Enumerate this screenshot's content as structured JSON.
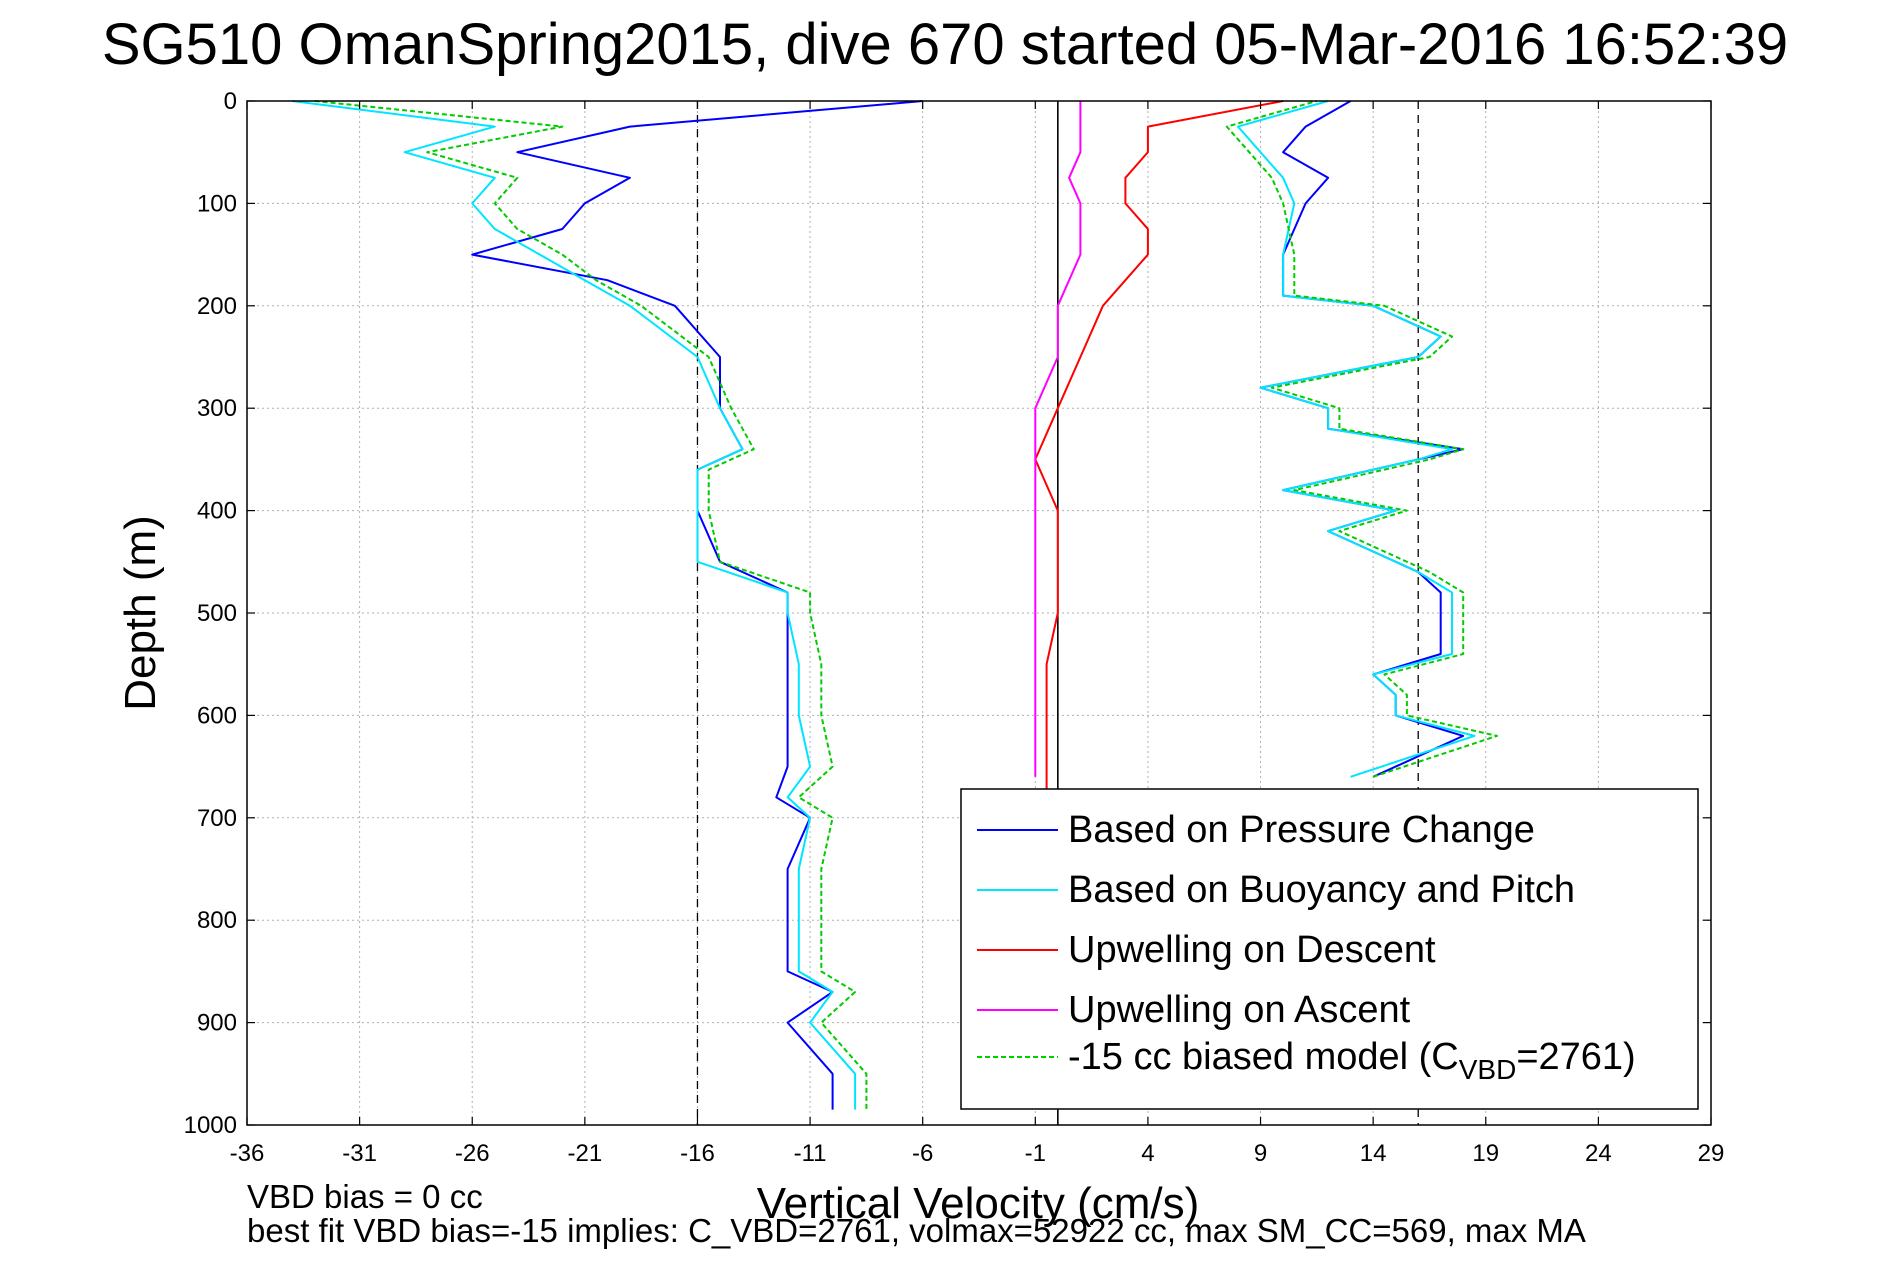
{
  "chart_data": {
    "type": "line",
    "title": "SG510 OmanSpring2015, dive 670 started 05-Mar-2016 16:52:39",
    "xlabel": "Vertical Velocity (cm/s)",
    "ylabel": "Depth (m)",
    "xlim": [
      -36,
      29
    ],
    "ylim": [
      0,
      1000
    ],
    "y_reversed": true,
    "x_ticks": [
      "-36",
      "-31",
      "-26",
      "-21",
      "-16",
      "-11",
      "-6",
      "-1",
      "4",
      "9",
      "14",
      "19",
      "24",
      "29"
    ],
    "y_ticks": [
      "0",
      "100",
      "200",
      "300",
      "400",
      "500",
      "600",
      "700",
      "800",
      "900",
      "1000"
    ],
    "grid": true,
    "reference_lines": {
      "dashed_x": [
        -16,
        16
      ],
      "solid_x": [
        0
      ]
    },
    "legend_position": "bottom-right",
    "series": [
      {
        "name": "Based on Pressure Change",
        "color": "#0000ff",
        "descent": {
          "depth": [
            0,
            25,
            50,
            75,
            100,
            125,
            150,
            175,
            200,
            250,
            300,
            340,
            360,
            400,
            450,
            480,
            500,
            550,
            600,
            650,
            680,
            700,
            750,
            800,
            850,
            870,
            900,
            950,
            985
          ],
          "velocity": [
            -6,
            -19,
            -24,
            -19,
            -21,
            -22,
            -26,
            -20,
            -17,
            -15,
            -15,
            -14,
            -16,
            -16,
            -15,
            -12,
            -12,
            -12,
            -12,
            -12,
            -12.5,
            -11,
            -12,
            -12,
            -12,
            -10,
            -12,
            -10,
            -10
          ]
        },
        "ascent": {
          "depth": [
            660,
            620,
            600,
            580,
            560,
            540,
            500,
            480,
            460,
            420,
            400,
            380,
            350,
            340,
            320,
            300,
            280,
            250,
            230,
            200,
            190,
            150,
            100,
            75,
            50,
            25,
            0
          ],
          "velocity": [
            14,
            18,
            15,
            15,
            14,
            17,
            17,
            17,
            16,
            12,
            15,
            10,
            16,
            18,
            12,
            12,
            9,
            16,
            17,
            14,
            10,
            10,
            11,
            12,
            10,
            11,
            13
          ]
        }
      },
      {
        "name": "Based on Buoyancy and Pitch",
        "color": "#00e5ff",
        "descent": {
          "depth": [
            0,
            25,
            50,
            75,
            100,
            125,
            150,
            175,
            200,
            250,
            300,
            340,
            360,
            400,
            450,
            480,
            500,
            550,
            600,
            650,
            680,
            700,
            750,
            800,
            850,
            870,
            900,
            950,
            985
          ],
          "velocity": [
            -34,
            -25,
            -29,
            -25,
            -26,
            -25,
            -23,
            -21,
            -19,
            -16,
            -15,
            -14,
            -16,
            -16,
            -16,
            -12,
            -12,
            -11.5,
            -11.5,
            -11,
            -12,
            -11,
            -11.5,
            -11.5,
            -11.5,
            -10,
            -11,
            -9,
            -9
          ]
        },
        "ascent": {
          "depth": [
            660,
            620,
            600,
            580,
            560,
            540,
            500,
            480,
            460,
            420,
            400,
            380,
            350,
            340,
            320,
            300,
            280,
            250,
            230,
            200,
            190,
            150,
            100,
            75,
            50,
            25,
            0
          ],
          "velocity": [
            13,
            18.5,
            15,
            15,
            14,
            17.5,
            17.5,
            17.5,
            16,
            12,
            15,
            10,
            16,
            17.5,
            12,
            12,
            9,
            16,
            17,
            14,
            10,
            10,
            10.5,
            10,
            9,
            8,
            12
          ]
        }
      },
      {
        "name": "Upwelling on Descent",
        "color": "#ff0000",
        "descent": {
          "depth": [
            0,
            25,
            50,
            75,
            100,
            125,
            150,
            175,
            200,
            250,
            300,
            350,
            400,
            450,
            500,
            550,
            600,
            650,
            680
          ],
          "velocity": [
            10,
            4,
            4,
            3,
            3,
            4,
            4,
            3,
            2,
            1,
            0,
            -1,
            0,
            0,
            0,
            -0.5,
            -0.5,
            -0.5,
            -0.5
          ]
        }
      },
      {
        "name": "Upwelling on Ascent",
        "color": "#ff00ff",
        "ascent": {
          "depth": [
            660,
            600,
            550,
            500,
            450,
            400,
            350,
            300,
            250,
            200,
            150,
            100,
            75,
            50,
            25,
            0
          ],
          "velocity": [
            -1,
            -1,
            -1,
            -1,
            -1,
            -1,
            -1,
            -1,
            0,
            0,
            1,
            1,
            0.5,
            1,
            1,
            1
          ]
        }
      },
      {
        "name": "-15 cc biased model (C",
        "name_sub": "VBD",
        "name_tail": "=2761)",
        "color": "#00cc00",
        "dashed": true,
        "descent": {
          "depth": [
            0,
            25,
            50,
            75,
            100,
            125,
            150,
            175,
            200,
            250,
            300,
            340,
            360,
            400,
            450,
            480,
            500,
            550,
            600,
            650,
            680,
            700,
            750,
            800,
            850,
            870,
            900,
            950,
            985
          ],
          "velocity": [
            -33,
            -22,
            -28,
            -24,
            -25,
            -24,
            -22,
            -20.5,
            -18.5,
            -15.5,
            -14.5,
            -13.5,
            -15.5,
            -15.5,
            -15,
            -11,
            -11,
            -10.5,
            -10.5,
            -10,
            -11.5,
            -10,
            -10.5,
            -10.5,
            -10.5,
            -9,
            -10.5,
            -8.5,
            -8.5
          ]
        },
        "ascent": {
          "depth": [
            660,
            620,
            600,
            580,
            560,
            540,
            500,
            480,
            460,
            420,
            400,
            380,
            350,
            340,
            320,
            300,
            280,
            250,
            230,
            200,
            190,
            150,
            100,
            75,
            50,
            25,
            0
          ],
          "velocity": [
            14,
            19.5,
            15.5,
            15.5,
            14.5,
            18,
            18,
            18,
            16.5,
            12.5,
            15.5,
            10.5,
            16.5,
            18,
            12.5,
            12.5,
            9.5,
            16.5,
            17.5,
            14.5,
            10.5,
            10.5,
            10,
            9.5,
            8.5,
            7.5,
            11.5
          ]
        }
      }
    ],
    "footer": {
      "line1": "VBD bias = 0 cc",
      "line2": "best fit VBD bias=-15 implies: C_VBD=2761, volmax=52922 cc, max SM_CC=569, max MA"
    }
  }
}
